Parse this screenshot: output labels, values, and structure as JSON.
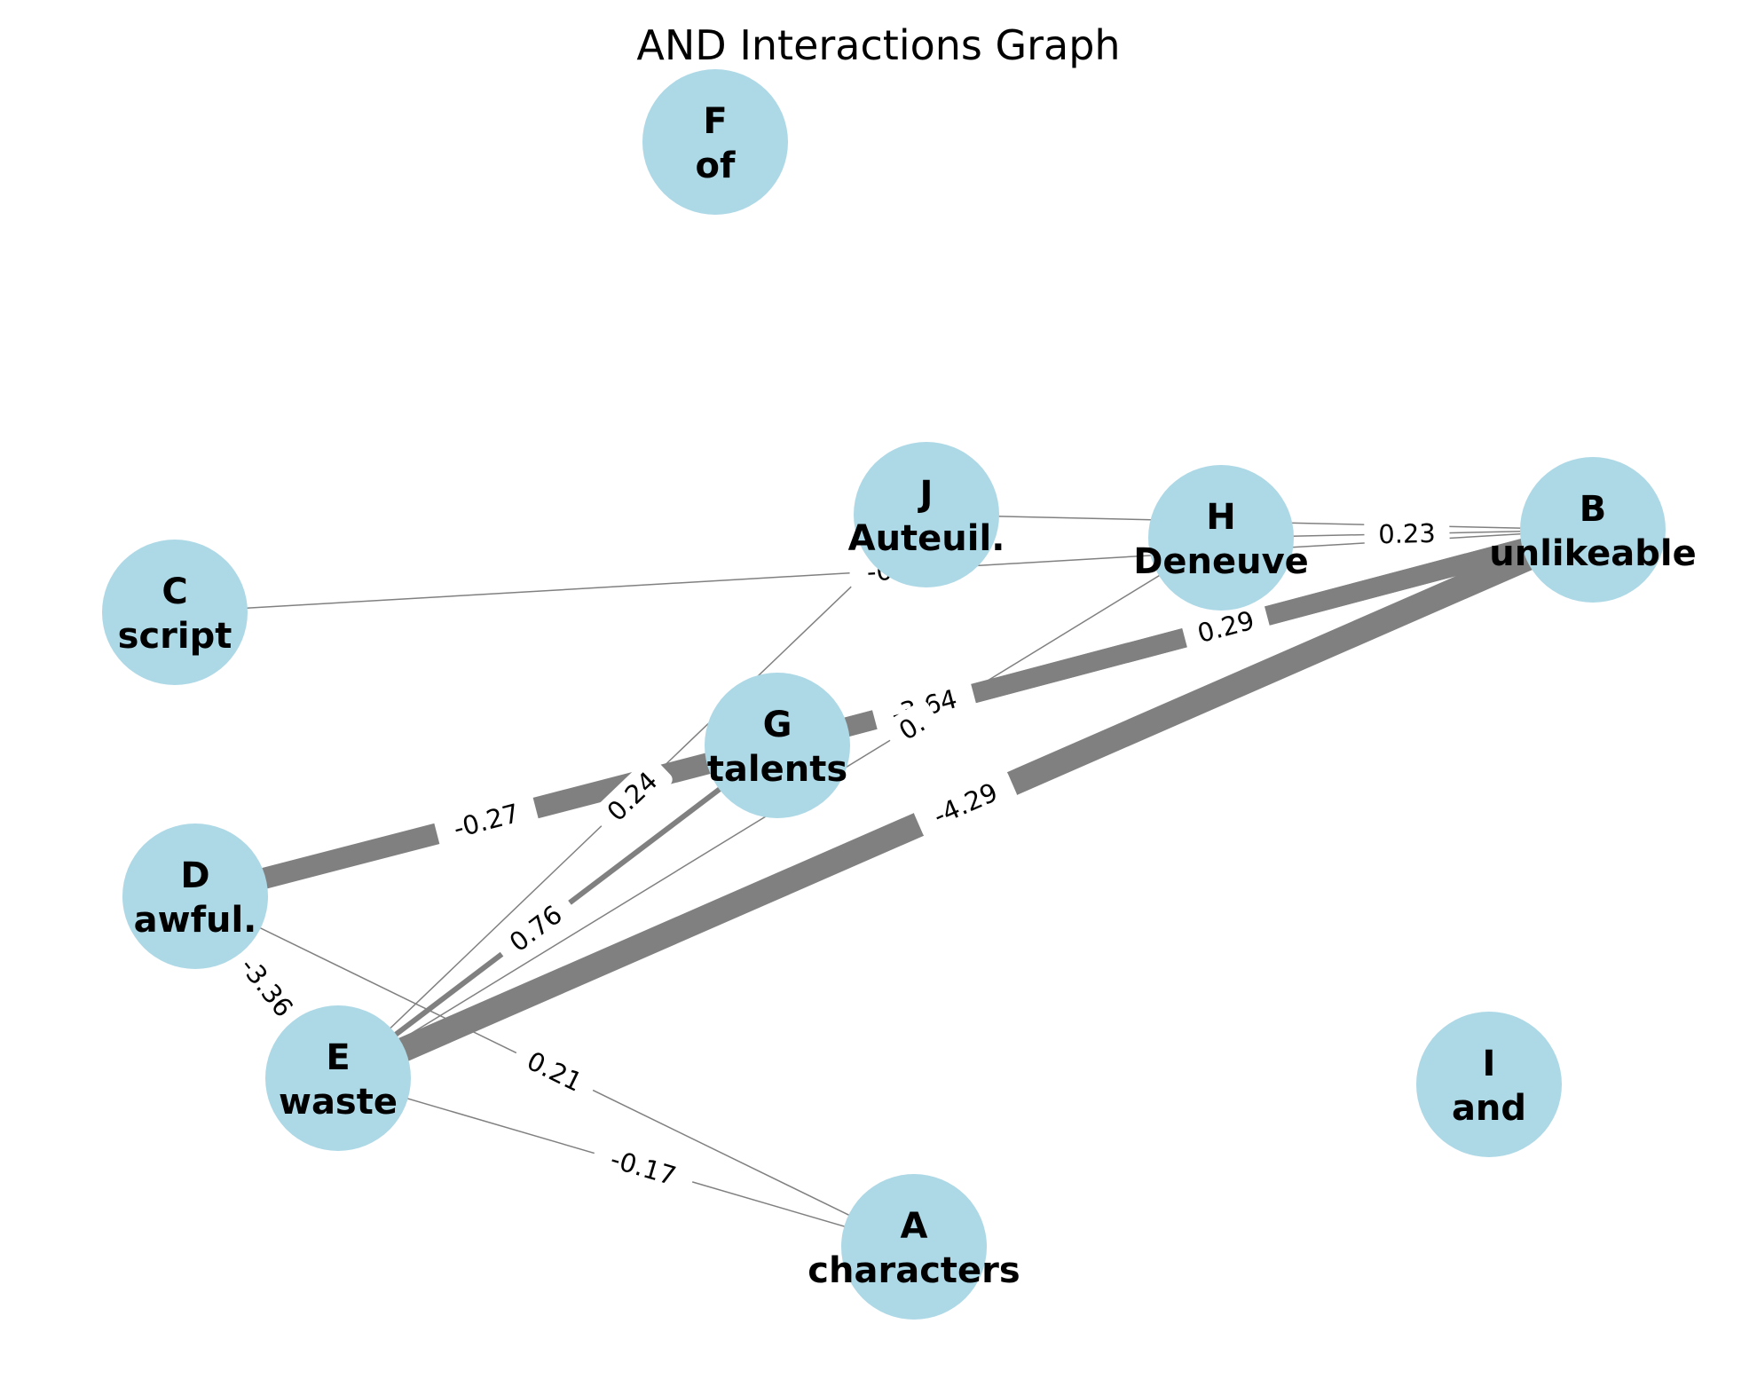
{
  "title": "AND Interactions Graph",
  "colors": {
    "node": "#add8e6",
    "edge": "#808080",
    "text": "#000000",
    "background": "#ffffff"
  },
  "nodes": [
    {
      "id": "A",
      "word": "characters"
    },
    {
      "id": "B",
      "word": "unlikeable"
    },
    {
      "id": "C",
      "word": "script"
    },
    {
      "id": "D",
      "word": "awful."
    },
    {
      "id": "E",
      "word": "waste"
    },
    {
      "id": "F",
      "word": "of"
    },
    {
      "id": "G",
      "word": "talents"
    },
    {
      "id": "H",
      "word": "Deneuve"
    },
    {
      "id": "I",
      "word": "and"
    },
    {
      "id": "J",
      "word": "Auteuil."
    }
  ],
  "edges": [
    {
      "source": "E",
      "target": "B",
      "label": "-4.29"
    },
    {
      "source": "D",
      "target": "G",
      "label": "-0.27"
    },
    {
      "source": "G",
      "target": "B",
      "label": "-3.64"
    },
    {
      "source": "G",
      "target": "B",
      "label": "0.29"
    },
    {
      "source": "E",
      "target": "G",
      "label": "0.76"
    },
    {
      "source": "E",
      "target": "J",
      "label": "0.24"
    },
    {
      "source": "E",
      "target": "H",
      "label": "0."
    },
    {
      "source": "D",
      "target": "E",
      "label": "-3.36"
    },
    {
      "source": "D",
      "target": "A",
      "label": "0.21"
    },
    {
      "source": "E",
      "target": "A",
      "label": "-0.17"
    },
    {
      "source": "H",
      "target": "B",
      "label": "0.23"
    },
    {
      "source": "J",
      "target": "B",
      "label": ""
    },
    {
      "source": "C",
      "target": "B",
      "label": "-0."
    }
  ]
}
